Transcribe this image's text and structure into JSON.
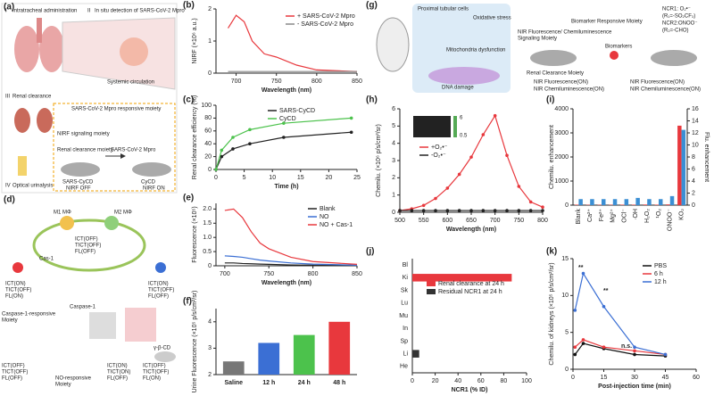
{
  "chart_data": [
    {
      "type": "line",
      "xlabel": "Wavelength (nm)",
      "ylabel": "NIRF (×10⁶ a.u.)",
      "xlim": [
        675,
        850
      ],
      "xticks": [
        700,
        750,
        800,
        850
      ],
      "ylim": [
        0,
        2
      ],
      "yticks": [
        0,
        1,
        2
      ],
      "x": [
        690,
        700,
        710,
        720,
        735,
        750,
        775,
        800,
        850
      ],
      "series": [
        {
          "name": "+ SARS-CoV-2 Mpro",
          "color": "#e8383d",
          "values": [
            1.4,
            1.8,
            1.6,
            1.0,
            0.6,
            0.5,
            0.25,
            0.1,
            0.05
          ]
        },
        {
          "name": "- SARS-CoV-2 Mpro",
          "color": "#888888",
          "values": [
            0.05,
            0.05,
            0.05,
            0.05,
            0.05,
            0.05,
            0.05,
            0.05,
            0.05
          ]
        }
      ]
    },
    {
      "type": "line",
      "markers": true,
      "xlabel": "Time (h)",
      "ylabel": "Renal clearance efficiency (%)",
      "xlim": [
        0,
        25
      ],
      "xticks": [
        0,
        5,
        10,
        15,
        20,
        25
      ],
      "ylim": [
        0,
        100
      ],
      "yticks": [
        0,
        20,
        40,
        60,
        80,
        100
      ],
      "x": [
        0,
        1,
        3,
        6,
        12,
        24
      ],
      "series": [
        {
          "name": "SARS-CyCD",
          "color": "#222222",
          "values": [
            0,
            20,
            32,
            40,
            50,
            58
          ]
        },
        {
          "name": "CyCD",
          "color": "#4cc24c",
          "values": [
            0,
            30,
            50,
            62,
            72,
            80
          ]
        }
      ]
    },
    {
      "type": "line",
      "xlabel": "Wavelength (nm)",
      "ylabel": "Fluorescence (×10⁵)",
      "xlim": [
        690,
        850
      ],
      "xticks": [
        700,
        750,
        800,
        850
      ],
      "ylim": [
        0,
        2.2
      ],
      "yticks": [
        0,
        0.5,
        {
          "value": 1,
          "label": "1.0"
        },
        1.5,
        {
          "value": 2,
          "label": "2.0"
        }
      ],
      "x": [
        700,
        710,
        720,
        730,
        740,
        750,
        775,
        800,
        850
      ],
      "series": [
        {
          "name": "Blank",
          "color": "#222222",
          "values": [
            0.1,
            0.1,
            0.08,
            0.07,
            0.06,
            0.05,
            0.03,
            0.02,
            0.01
          ]
        },
        {
          "name": "NO",
          "color": "#3b6fd4",
          "values": [
            0.35,
            0.33,
            0.3,
            0.25,
            0.2,
            0.17,
            0.1,
            0.06,
            0.02
          ]
        },
        {
          "name": "NO + Cas-1",
          "color": "#e8383d",
          "values": [
            1.95,
            2.0,
            1.7,
            1.2,
            0.8,
            0.6,
            0.3,
            0.15,
            0.05
          ]
        }
      ]
    },
    {
      "type": "bar",
      "ylabel": "Urine Fluorescence (×10⁵ p/s/cm²/sr)",
      "categories": [
        "Saline",
        "12 h",
        "24 h",
        "48 h"
      ],
      "values": [
        2.5,
        3.2,
        3.5,
        4.0
      ],
      "colors": [
        "#777777",
        "#3b6fd4",
        "#4cc24c",
        "#e8383d"
      ],
      "ylim": [
        2,
        4.5
      ],
      "yticks": [
        2,
        3,
        4
      ]
    },
    {
      "type": "line",
      "markers": true,
      "xlabel": "Wavelength (nm)",
      "ylabel": "Chemilu. (×10⁶ p/s/cm²/sr)",
      "xlim": [
        500,
        800
      ],
      "xticks": [
        500,
        550,
        600,
        650,
        700,
        750,
        800
      ],
      "ylim": [
        0,
        6
      ],
      "yticks": [
        0,
        1,
        2,
        3,
        4,
        5,
        6
      ],
      "x": [
        500,
        525,
        550,
        575,
        600,
        625,
        650,
        675,
        700,
        725,
        750,
        775,
        800
      ],
      "series": [
        {
          "name": "+O₂•⁻",
          "color": "#e8383d",
          "values": [
            0.1,
            0.2,
            0.4,
            0.8,
            1.4,
            2.2,
            3.2,
            4.5,
            5.6,
            3.3,
            1.5,
            0.6,
            0.3
          ]
        },
        {
          "name": "-O₂•⁻",
          "color": "#222222",
          "values": [
            0.1,
            0.1,
            0.1,
            0.1,
            0.1,
            0.1,
            0.1,
            0.1,
            0.1,
            0.1,
            0.1,
            0.1,
            0.1
          ]
        }
      ]
    },
    {
      "type": "bar_dual",
      "ylabel": "Chemilu. enhancement",
      "y2label": "Flu. enhancement",
      "categories": [
        "Blank",
        "Ca²⁺",
        "Fe²⁺",
        "Mg²⁺",
        "OCl⁻",
        "·OH",
        "H₂O₂",
        "¹O₂",
        "ONOO⁻",
        "KO₂"
      ],
      "ylim": [
        0,
        4000
      ],
      "yticks": [
        0,
        1000,
        2000,
        3000,
        4000
      ],
      "y2lim": [
        0,
        16
      ],
      "y2ticks": [
        0,
        2,
        4,
        6,
        8,
        10,
        12,
        14,
        16
      ],
      "series": [
        {
          "color": "#e8383d",
          "values": [
            20,
            15,
            15,
            15,
            20,
            20,
            25,
            20,
            30,
            3300
          ]
        },
        {
          "color": "#3b8fd4",
          "axis": "y2",
          "values": [
            1,
            1,
            1,
            1,
            1,
            1.2,
            1,
            1,
            1.5,
            12.5
          ]
        }
      ]
    },
    {
      "type": "hbar",
      "xlabel": "NCR1 (% ID)",
      "categories": [
        "Bl",
        "Ki",
        "Sk",
        "Lu",
        "Mu",
        "In",
        "Sp",
        "Li",
        "He"
      ],
      "xlim": [
        0,
        100
      ],
      "xticks": [
        0,
        20,
        40,
        60,
        80,
        100
      ],
      "series": [
        {
          "name": "Renal clearance at 24 h",
          "color": "#e8383d",
          "values": [
            null,
            87,
            null,
            null,
            null,
            null,
            null,
            null,
            null
          ]
        },
        {
          "name": "Residual NCR1 at 24 h",
          "color": "#333333",
          "values": [
            null,
            null,
            null,
            null,
            null,
            null,
            null,
            6,
            null
          ]
        }
      ]
    },
    {
      "type": "line",
      "markers": true,
      "xlabel": "Post-injection time (min)",
      "ylabel": "Chemilu. of kidneys (×10⁵ p/s/cm²/sr)",
      "xlim": [
        0,
        60
      ],
      "xticks": [
        0,
        15,
        30,
        45,
        60
      ],
      "ylim": [
        0,
        15
      ],
      "yticks": [
        0,
        5,
        10,
        15
      ],
      "x": [
        1,
        5,
        15,
        30,
        45
      ],
      "series": [
        {
          "name": "PBS",
          "color": "#111111",
          "values": [
            2,
            3.5,
            2.8,
            2,
            1.8
          ]
        },
        {
          "name": "6 h",
          "color": "#e8383d",
          "values": [
            3,
            4,
            3,
            2.5,
            2
          ]
        },
        {
          "name": "12 h",
          "color": "#3b6fd4",
          "values": [
            8,
            13,
            8.5,
            3,
            2
          ]
        }
      ],
      "annotations": [
        "**",
        "**",
        "n.s."
      ]
    }
  ],
  "figure": {
    "panel_labels": [
      "(a)",
      "(b)",
      "(c)",
      "(d)",
      "(e)",
      "(f)",
      "(g)",
      "(h)",
      "(i)",
      "(j)",
      "(k)"
    ],
    "a": [
      "I",
      "Intratracheal administration",
      "II",
      "In situ detection of SARS-CoV-2 Mpro",
      "Systemic circulation",
      "III",
      "Renal clearance",
      "SARS-CoV-2 Mpro responsive moiety",
      "NIRF signaling moiety",
      "Renal clearance moiety",
      "SARS-CyCD",
      "NIRF OFF",
      "SARS-CoV-2 Mpro",
      "CyCD",
      "NIRF ON",
      "IV",
      "Optical urinalysis"
    ],
    "d": [
      "M1 MΦ",
      "M2 MΦ",
      "Cas-1",
      "ICT(OFF)",
      "TICT(OFF)",
      "FL(OFF)",
      "ICT(ON)",
      "TICT(OFF)",
      "FL(ON)",
      "ICT(ON)",
      "TICT(OFF)",
      "FL(OFF)",
      "Caspase-1-responsive",
      "Moiety",
      "Caspase-1",
      "ICT(OFF)",
      "TICT(OFF)",
      "FL(OFF)",
      "NO-responsive",
      "Moiety",
      "ICT(ON)",
      "TICT(ON)",
      "FL(OFF)",
      "ICT(OFF)",
      "TICT(OFF)",
      "FL(ON)",
      "γ-β-CD"
    ],
    "g": [
      "Biomarker Responsive Moiety",
      "NIR Fluorescence/ Chemiluminescence",
      "Signaling Moiety",
      "NCR1: O₂•⁻",
      "(R₁=-SO₂CF₃)",
      "NCR2:ONOO⁻",
      "(R₂=-CHO)",
      "Renal Clearance Moiety",
      "NIR Fluorescence(ON)",
      "NIR Chemiluminescence(ON)",
      "NIR Fluorescence(ON)",
      "NIR Chemiluminescence(ON)",
      "Biomarkers",
      "Proximal tubular cells",
      "Oxidative stress",
      "Mitochondria dysfunction",
      "DNA damage"
    ],
    "h_inset": [
      "6",
      "0.5"
    ]
  }
}
